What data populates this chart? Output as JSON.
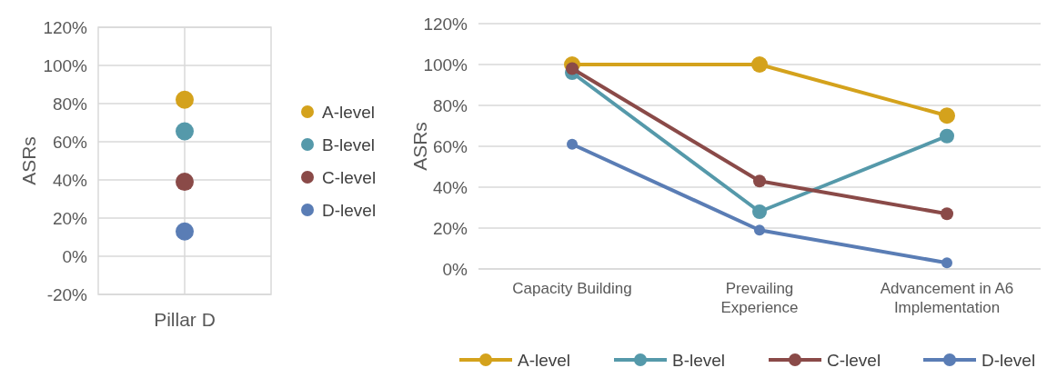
{
  "chart_data": [
    {
      "type": "scatter",
      "ylabel": "ASRs",
      "categories": [
        "Pillar D"
      ],
      "ylim": [
        -20,
        120
      ],
      "yticks": [
        {
          "value": -20,
          "label": "-20%"
        },
        {
          "value": 0,
          "label": "0%"
        },
        {
          "value": 20,
          "label": "20%"
        },
        {
          "value": 40,
          "label": "40%"
        },
        {
          "value": 60,
          "label": "60%"
        },
        {
          "value": 80,
          "label": "80%"
        },
        {
          "value": 100,
          "label": "100%"
        },
        {
          "value": 120,
          "label": "120%"
        }
      ],
      "grid": true,
      "legend": "right",
      "marker": "circle",
      "series": [
        {
          "name": "A-level",
          "color": "#d4a21c",
          "values": [
            82
          ]
        },
        {
          "name": "B-level",
          "color": "#5599aa",
          "values": [
            65.5
          ]
        },
        {
          "name": "C-level",
          "color": "#8a4a48",
          "values": [
            39
          ]
        },
        {
          "name": "D-level",
          "color": "#5a7db5",
          "values": [
            13
          ]
        }
      ]
    },
    {
      "type": "line",
      "ylabel": "ASRs",
      "categories": [
        "Capacity Building",
        "Prevailing Experience",
        "Advancement in A6 Implementation"
      ],
      "ylim": [
        0,
        120
      ],
      "yticks": [
        {
          "value": 0,
          "label": "0%"
        },
        {
          "value": 20,
          "label": "20%"
        },
        {
          "value": 40,
          "label": "40%"
        },
        {
          "value": 60,
          "label": "60%"
        },
        {
          "value": 80,
          "label": "80%"
        },
        {
          "value": 100,
          "label": "100%"
        },
        {
          "value": 120,
          "label": "120%"
        }
      ],
      "grid": "y",
      "legend": "bottom",
      "marker": "circle",
      "line_style": "solid",
      "series": [
        {
          "name": "A-level",
          "color": "#d4a21c",
          "values": [
            100,
            100,
            75
          ]
        },
        {
          "name": "B-level",
          "color": "#5599aa",
          "values": [
            96,
            28,
            65
          ]
        },
        {
          "name": "C-level",
          "color": "#8a4a48",
          "values": [
            98,
            43,
            27
          ]
        },
        {
          "name": "D-level",
          "color": "#5a7db5",
          "values": [
            61,
            19,
            3
          ]
        }
      ]
    }
  ]
}
